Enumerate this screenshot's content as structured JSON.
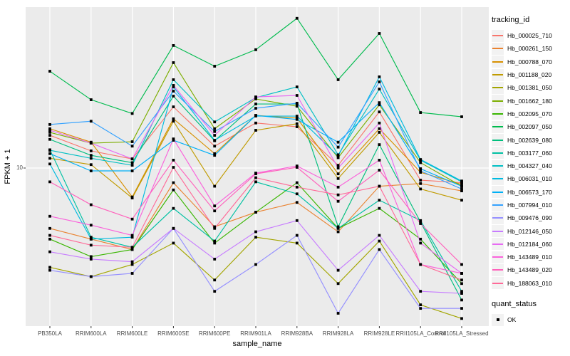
{
  "colors": {
    "page_bg": "#FFFFFF",
    "panel_bg": "#EBEBEB",
    "grid": "#FFFFFF",
    "tick_mark": "#333333",
    "tick_text": "#4D4D4D",
    "point": "#000000"
  },
  "chart_data": {
    "type": "line",
    "title": "",
    "xlabel": "sample_name",
    "ylabel": "FPKM + 1",
    "y_scale": "log10",
    "ylim": [
      1.1,
      95
    ],
    "y_major_breaks": [
      10
    ],
    "y_tick_labels": [
      "10"
    ],
    "grid": "on",
    "legend_position": "right",
    "categories": [
      "PB350LA",
      "RRIM600LA",
      "RRIM600LE",
      "RRIM600SE",
      "RRIM600PE",
      "RRIM901LA",
      "RRIM928BA",
      "RRIM928LA",
      "RRIM928LE",
      "RRII105LA_Control",
      "RRII105LA_Stressed"
    ],
    "legend": {
      "color_title": "tracking_id",
      "shape_title": "quant_status",
      "shape_entries": [
        {
          "label": "OK",
          "shape": "filled-square"
        }
      ]
    },
    "series": [
      {
        "name": "Hb_000025_710",
        "color": "#F8766D",
        "values": [
          16.0,
          12.8,
          11.4,
          24.1,
          13.7,
          19.1,
          18.1,
          10.4,
          22.4,
          8.4,
          8.1
        ]
      },
      {
        "name": "Hb_000261_150",
        "color": "#EA8331",
        "values": [
          4.2,
          3.6,
          3.1,
          8.1,
          4.3,
          5.3,
          6.1,
          4.0,
          7.7,
          8.0,
          7.2
        ]
      },
      {
        "name": "Hb_000788_070",
        "color": "#D89000",
        "values": [
          17.6,
          14.5,
          6.6,
          20.3,
          12.3,
          21.3,
          20.5,
          9.2,
          17.6,
          9.4,
          7.9
        ]
      },
      {
        "name": "Hb_001188_020",
        "color": "#C09B00",
        "values": [
          11.5,
          10.5,
          6.5,
          19.6,
          7.7,
          17.2,
          18.9,
          8.6,
          16.7,
          7.4,
          6.3
        ]
      },
      {
        "name": "Hb_001381_050",
        "color": "#A3A500",
        "values": [
          2.4,
          2.1,
          2.5,
          3.4,
          2.0,
          3.7,
          3.4,
          1.9,
          3.5,
          1.4,
          1.15
        ]
      },
      {
        "name": "Hb_001662_180",
        "color": "#7CAE00",
        "values": [
          16.7,
          14.3,
          14.6,
          45.5,
          17.6,
          27.0,
          24.3,
          11.6,
          24.8,
          10.8,
          7.7
        ]
      },
      {
        "name": "Hb_002095_070",
        "color": "#39B600",
        "values": [
          3.6,
          2.8,
          3.1,
          7.3,
          3.4,
          5.3,
          8.1,
          4.2,
          5.6,
          3.6,
          1.9
        ]
      },
      {
        "name": "Hb_002097_050",
        "color": "#00BB4E",
        "values": [
          40.2,
          26.7,
          21.9,
          58.2,
          43.2,
          54.8,
          86.0,
          35.6,
          69.2,
          22.2,
          20.9
        ]
      },
      {
        "name": "Hb_002639_080",
        "color": "#00BF7D",
        "values": [
          15.1,
          12.0,
          10.8,
          28.1,
          14.8,
          25.1,
          25.1,
          4.3,
          14.0,
          4.6,
          1.5
        ]
      },
      {
        "name": "Hb_003177_060",
        "color": "#00C1A3",
        "values": [
          13.0,
          3.7,
          3.2,
          5.6,
          3.5,
          8.2,
          6.9,
          4.2,
          6.3,
          4.7,
          1.7
        ]
      },
      {
        "name": "Hb_004327_040",
        "color": "#00BFC4",
        "values": [
          12.9,
          11.5,
          10.4,
          35.6,
          19.4,
          27.5,
          32.1,
          12.1,
          31.1,
          11.2,
          8.2
        ]
      },
      {
        "name": "Hb_006031_010",
        "color": "#00BAE0",
        "values": [
          10.6,
          3.6,
          3.7,
          32.1,
          14.9,
          21.1,
          21.1,
          11.9,
          37.1,
          11.3,
          8.3
        ]
      },
      {
        "name": "Hb_006573_170",
        "color": "#00B0F6",
        "values": [
          12.3,
          9.6,
          9.6,
          14.9,
          12.0,
          21.3,
          20.1,
          14.5,
          25.6,
          9.9,
          7.7
        ]
      },
      {
        "name": "Hb_007994_010",
        "color": "#35A2FF",
        "values": [
          18.7,
          19.6,
          13.7,
          30.2,
          16.9,
          23.6,
          25.4,
          13.5,
          34.5,
          9.6,
          7.4
        ]
      },
      {
        "name": "Hb_009476_090",
        "color": "#9590FF",
        "values": [
          2.3,
          2.1,
          2.2,
          4.2,
          1.7,
          2.5,
          3.8,
          1.24,
          3.1,
          1.33,
          1.33
        ]
      },
      {
        "name": "Hb_012146_050",
        "color": "#C77CFF",
        "values": [
          3.0,
          2.7,
          2.6,
          4.2,
          2.7,
          4.0,
          4.7,
          2.3,
          3.8,
          1.7,
          1.65
        ]
      },
      {
        "name": "Hb_012184_060",
        "color": "#E76BF3",
        "values": [
          17.2,
          14.3,
          11.4,
          32.8,
          16.0,
          27.8,
          28.4,
          10.0,
          19.1,
          3.4,
          2.2
        ]
      },
      {
        "name": "Hb_143489_010",
        "color": "#FA62DB",
        "values": [
          5.0,
          4.4,
          3.8,
          15.2,
          5.8,
          9.3,
          10.3,
          7.6,
          11.2,
          2.5,
          2.2
        ]
      },
      {
        "name": "Hb_143489_020",
        "color": "#FF62BC",
        "values": [
          8.2,
          5.9,
          4.8,
          11.2,
          5.4,
          9.2,
          10.1,
          6.2,
          9.7,
          4.5,
          2.5
        ]
      },
      {
        "name": "Hb_188063_010",
        "color": "#FF6A98",
        "values": [
          3.8,
          3.3,
          3.2,
          10.1,
          4.2,
          8.7,
          7.6,
          6.8,
          7.7,
          2.5,
          2.0
        ]
      }
    ]
  }
}
